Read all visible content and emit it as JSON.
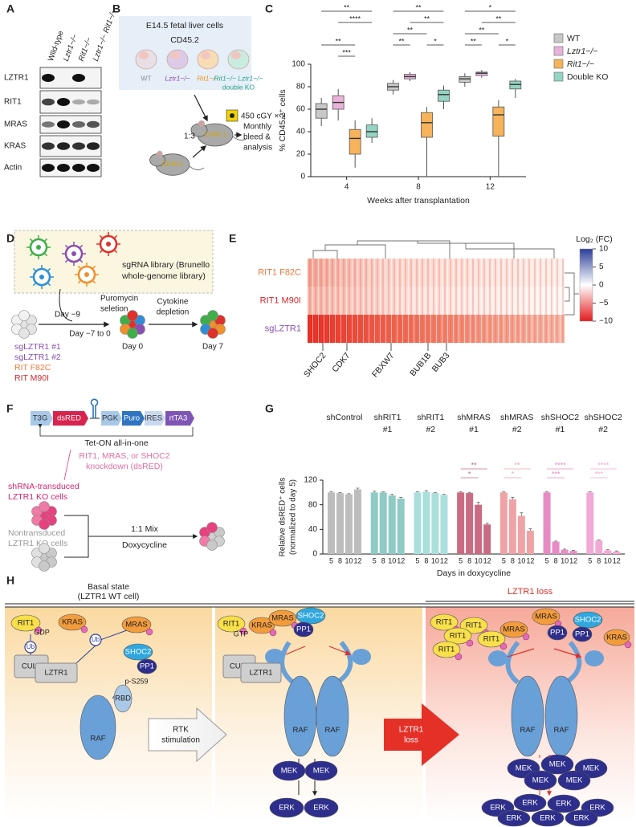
{
  "panel_labels": [
    "A",
    "B",
    "C",
    "D",
    "E",
    "F",
    "G",
    "H"
  ],
  "blot": {
    "columns": [
      "Wild-type",
      "Lztr1−/−",
      "Rit1−/−",
      "Lztr1−/− Rit1−/−"
    ],
    "rows": [
      "LZTR1",
      "RIT1",
      "MRAS",
      "KRAS",
      "Actin"
    ]
  },
  "transplant": {
    "title": "E14.5 fetal liver cells",
    "donor": "CD45.2",
    "genotypes": [
      "WT",
      "Lztr1−/−",
      "Rit1−/−",
      "Rit1−/− Lztr1−/−"
    ],
    "double_ko": "double KO",
    "irradiation": "450 cGY × 2",
    "ratio": "1:3",
    "recipient": "CD45.1",
    "competitor": "CD45.1",
    "readout": [
      "Monthly",
      "bleed &",
      "analysis"
    ]
  },
  "screen": {
    "library": [
      "sgRNA library (Brunello",
      "whole-genome library)"
    ],
    "day_start": "Day −9",
    "selection": [
      "Puromycin",
      "seletion"
    ],
    "selection_days": "Day −7 to 0",
    "depletion": [
      "Cytokine",
      "depletion"
    ],
    "day0": "Day 0",
    "day7": "Day 7",
    "conditions": [
      "sgLZTR1 #1",
      "sgLZTR1 #2",
      "RIT F82C",
      "RIT M90I"
    ]
  },
  "construct": {
    "elements": [
      "T3G",
      "dsRED",
      "PGK",
      "Puro",
      "IRES",
      "rtTA3"
    ],
    "vector": "Tet-ON all-in-one",
    "knockdown": [
      "RIT1, MRAS, or SHOC2",
      "knockdown (dsRED)"
    ],
    "transduced": [
      "shRNA-transduced",
      "LZTR1 KO cells"
    ],
    "nontransduced": [
      "Nontransduced",
      "LZTR1 KO cells"
    ],
    "mix": "1:1 Mix",
    "dox": "Doxycycline"
  },
  "model": {
    "basal_title": [
      "Basal state",
      "(LZTR1 WT cell)"
    ],
    "basal": [
      "RIT1",
      "GDP",
      "KRAS",
      "MRAS",
      "Ub",
      "Ub",
      "CUL3",
      "LZTR1",
      "SHOC2",
      "PP1",
      "p-S259",
      "RBD",
      "RAF"
    ],
    "rtk": [
      "RTK",
      "stimulation"
    ],
    "active": [
      "RIT1",
      "GTP",
      "KRAS",
      "MRAS",
      "SHOC2",
      "PP1",
      "CUL3",
      "LZTR1",
      "RAF",
      "RAF",
      "MEK",
      "MEK",
      "ERK",
      "ERK"
    ],
    "loss_arrow": [
      "LZTR1",
      "loss"
    ],
    "loss_title": "LZTR1 loss",
    "loss": [
      "RIT1",
      "RIT1",
      "RIT1",
      "RIT1",
      "RIT1",
      "MRAS",
      "MRAS",
      "SHOC2",
      "PP1",
      "PP1",
      "KRAS",
      "RAF",
      "RAF",
      "MEK",
      "MEK",
      "MEK",
      "MEK",
      "MEK",
      "ERK",
      "ERK",
      "ERK",
      "ERK",
      "ERK",
      "ERK",
      "ERK"
    ]
  },
  "chart_data": [
    {
      "type": "box",
      "ylabel": "% CD45.2⁺ cells",
      "xlabel": "Weeks after transplantation",
      "categories": [
        "4",
        "8",
        "12"
      ],
      "ylim": [
        0,
        100
      ],
      "yticks": [
        0,
        20,
        40,
        60,
        80,
        100
      ],
      "series": [
        {
          "name": "WT",
          "color": "#c8c8c8",
          "min": [
            45,
            73,
            80
          ],
          "q1": [
            52,
            77,
            84
          ],
          "median": [
            60,
            80,
            87
          ],
          "q3": [
            65,
            83,
            89
          ],
          "max": [
            70,
            86,
            92
          ]
        },
        {
          "name": "Lztr1−/−",
          "color": "#e9b3d9",
          "min": [
            50,
            85,
            88
          ],
          "q1": [
            60,
            87,
            90
          ],
          "median": [
            66,
            89,
            92
          ],
          "q3": [
            72,
            91,
            93
          ],
          "max": [
            78,
            93,
            95
          ]
        },
        {
          "name": "Rit1−/−",
          "color": "#f6b35c",
          "min": [
            8,
            0,
            0
          ],
          "q1": [
            20,
            35,
            36
          ],
          "median": [
            34,
            48,
            55
          ],
          "q3": [
            42,
            57,
            62
          ],
          "max": [
            50,
            62,
            68
          ]
        },
        {
          "name": "Double KO",
          "color": "#93d4c2",
          "min": [
            30,
            60,
            70
          ],
          "q1": [
            35,
            67,
            78
          ],
          "median": [
            40,
            73,
            82
          ],
          "q3": [
            46,
            77,
            85
          ],
          "max": [
            52,
            81,
            87
          ]
        }
      ],
      "significance": [
        [
          "**",
          "****",
          "**",
          "***"
        ],
        [
          "**",
          "**",
          "**",
          "**",
          "*"
        ],
        [
          "*",
          "**",
          "**",
          "**",
          "*"
        ]
      ]
    },
    {
      "type": "heatmap",
      "rows": [
        "RIT1 F82C",
        "RIT1 M90I",
        "sgLZTR1"
      ],
      "genes": [
        "SHOC2",
        "CDK7",
        "FBXW7",
        "BUB1B",
        "BUB3"
      ],
      "colorbar_title": "Log₂ (FC)",
      "clim": [
        -10,
        10
      ],
      "cticks": [
        10,
        5,
        0,
        {
          "value": -5,
          "label": "−5"
        },
        {
          "value": -10,
          "label": "−10"
        }
      ]
    },
    {
      "type": "bar",
      "ylabel": [
        "Relative dsRED⁺ cells",
        "(normalized to day 5)"
      ],
      "xlabel": "Days in doxycycline",
      "day_labels": [
        "5",
        "8",
        "10",
        "12"
      ],
      "ylim": [
        0,
        120
      ],
      "yticks": [
        0,
        40,
        80,
        120
      ],
      "groups": [
        {
          "name": [
            "shControl"
          ],
          "color": "#bdbdbd",
          "values": [
            100,
            99,
            97,
            105
          ],
          "errors": [
            1,
            1,
            1,
            2
          ],
          "significance": []
        },
        {
          "name": [
            "shRIT1",
            "#1"
          ],
          "color": "#8fcac5",
          "values": [
            100,
            100,
            95,
            90
          ],
          "errors": [
            2,
            1,
            2,
            2
          ],
          "significance": []
        },
        {
          "name": [
            "shRIT1",
            "#2"
          ],
          "color": "#aadfdb",
          "values": [
            100,
            101,
            99,
            96
          ],
          "errors": [
            1,
            2,
            1,
            1
          ],
          "significance": []
        },
        {
          "name": [
            "shMRAS",
            "#1"
          ],
          "color": "#c96b82",
          "values": [
            100,
            99,
            80,
            48
          ],
          "errors": [
            1,
            1,
            4,
            2
          ],
          "significance": [
            "**",
            "*"
          ]
        },
        {
          "name": [
            "shMRAS",
            "#2"
          ],
          "color": "#efa3a6",
          "values": [
            100,
            89,
            62,
            38
          ],
          "errors": [
            1,
            3,
            5,
            3
          ],
          "significance": [
            "**",
            "*"
          ]
        },
        {
          "name": [
            "shSHOC2",
            "#1"
          ],
          "color": "#e68bc3",
          "values": [
            100,
            20,
            7,
            5
          ],
          "errors": [
            1,
            1,
            1,
            1
          ],
          "significance": [
            "****",
            "***"
          ]
        },
        {
          "name": [
            "shSHOC2",
            "#2"
          ],
          "color": "#f1aad5",
          "values": [
            100,
            22,
            6,
            4
          ],
          "errors": [
            1,
            1,
            1,
            1
          ],
          "significance": [
            "****",
            "***"
          ]
        }
      ]
    }
  ]
}
